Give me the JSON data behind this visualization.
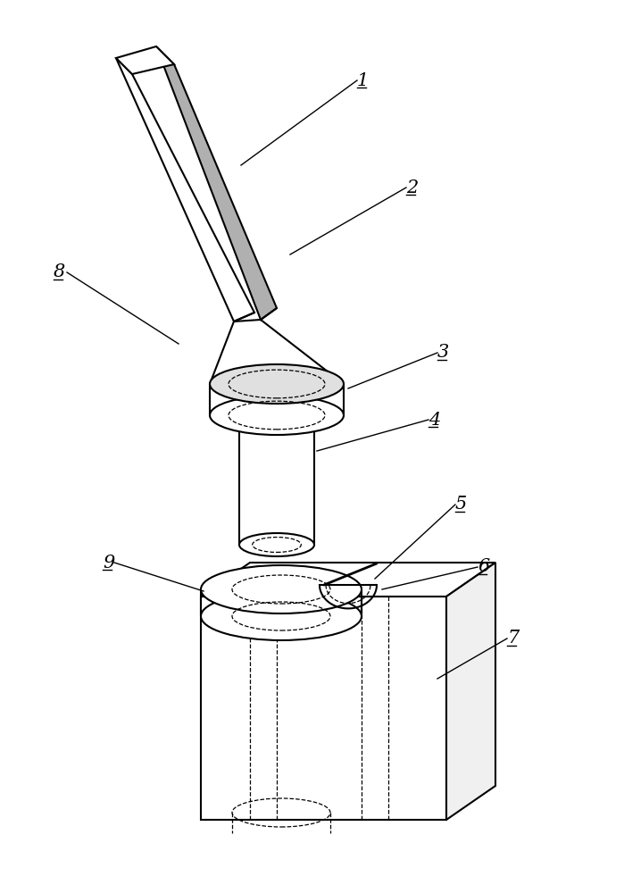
{
  "background_color": "#ffffff",
  "line_color": "#000000",
  "figsize": [
    6.99,
    10.0
  ],
  "dpi": 100,
  "lw_main": 1.5,
  "lw_thin": 0.9,
  "lw_dashed": 0.9
}
